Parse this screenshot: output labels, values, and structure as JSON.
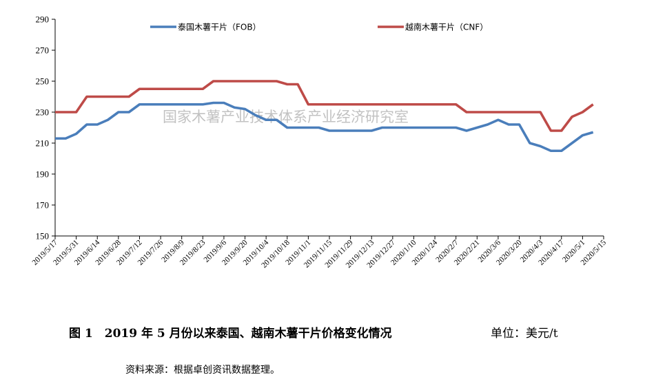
{
  "chart_data": {
    "type": "line",
    "x": [
      "2019/5/17",
      "2019/5/24",
      "2019/5/31",
      "2019/6/7",
      "2019/6/14",
      "2019/6/21",
      "2019/6/28",
      "2019/7/5",
      "2019/7/12",
      "2019/7/19",
      "2019/7/26",
      "2019/8/2",
      "2019/8/9",
      "2019/8/16",
      "2019/8/23",
      "2019/8/30",
      "2019/9/6",
      "2019/9/13",
      "2019/9/20",
      "2019/9/27",
      "2019/10/4",
      "2019/10/11",
      "2019/10/18",
      "2019/10/25",
      "2019/11/1",
      "2019/11/8",
      "2019/11/15",
      "2019/11/22",
      "2019/11/29",
      "2019/12/6",
      "2019/12/13",
      "2019/12/20",
      "2019/12/27",
      "2020/1/3",
      "2020/1/10",
      "2020/1/17",
      "2020/1/24",
      "2020/1/31",
      "2020/2/7",
      "2020/2/14",
      "2020/2/21",
      "2020/2/28",
      "2020/3/6",
      "2020/3/13",
      "2020/3/20",
      "2020/3/27",
      "2020/4/3",
      "2020/4/10",
      "2020/4/17",
      "2020/4/24",
      "2020/5/1",
      "2020/5/8",
      "2020/5/15"
    ],
    "tick_labels": [
      "2019/5/17",
      "2019/5/31",
      "2019/6/14",
      "2019/6/28",
      "2019/7/12",
      "2019/7/26",
      "2019/8/9",
      "2019/8/23",
      "2019/9/6",
      "2019/9/20",
      "2019/10/4",
      "2019/10/18",
      "2019/11/1",
      "2019/11/15",
      "2019/11/29",
      "2019/12/13",
      "2019/12/27",
      "2020/1/10",
      "2020/1/24",
      "2020/2/7",
      "2020/2/21",
      "2020/3/6",
      "2020/3/20",
      "2020/4/3",
      "2020/4/17",
      "2020/5/1",
      "2020/5/15"
    ],
    "series": [
      {
        "name": "泰国木薯干片（FOB）",
        "color": "#4a7ebb",
        "values": [
          213,
          213,
          216,
          222,
          222,
          225,
          230,
          230,
          235,
          235,
          235,
          235,
          235,
          235,
          235,
          236,
          236,
          233,
          232,
          228,
          225,
          225,
          220,
          220,
          220,
          220,
          218,
          218,
          218,
          218,
          218,
          220,
          220,
          220,
          220,
          220,
          220,
          220,
          220,
          218,
          220,
          222,
          225,
          222,
          222,
          210,
          208,
          205,
          205,
          210,
          215,
          217,
          null
        ]
      },
      {
        "name": "越南木薯干片（CNF）",
        "color": "#be4b48",
        "values": [
          230,
          230,
          230,
          240,
          240,
          240,
          240,
          240,
          245,
          245,
          245,
          245,
          245,
          245,
          245,
          250,
          250,
          250,
          250,
          250,
          250,
          250,
          248,
          248,
          235,
          235,
          235,
          235,
          235,
          235,
          235,
          235,
          235,
          235,
          235,
          235,
          235,
          235,
          235,
          230,
          230,
          230,
          230,
          230,
          230,
          230,
          230,
          218,
          218,
          227,
          230,
          235,
          null
        ]
      }
    ],
    "yticks": [
      150,
      170,
      190,
      210,
      230,
      250,
      270,
      290
    ],
    "ylim": [
      150,
      290
    ],
    "grid": false,
    "legend_position": "top"
  },
  "watermark": "国家木薯产业技术体系产业经济研究室",
  "caption": "图 1　2019 年 5 月份以来泰国、越南木薯干片价格变化情况",
  "unit": "单位：美元/t",
  "source": "资料来源：根据卓创资讯数据整理。"
}
